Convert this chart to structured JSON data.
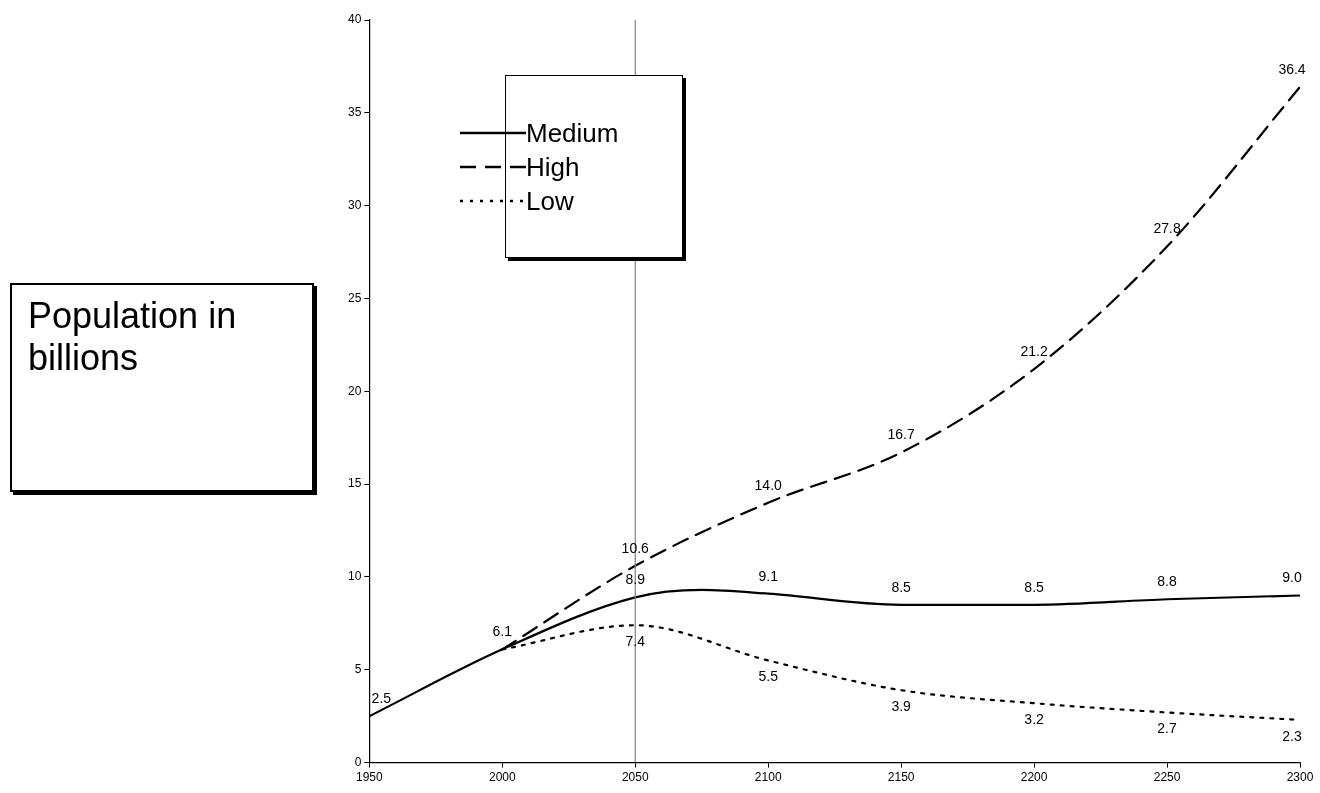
{
  "chart_data": {
    "type": "line",
    "ylabel": "Population in billions",
    "xlim": [
      1950,
      2300
    ],
    "xticks": [
      1950,
      2000,
      2050,
      2100,
      2150,
      2200,
      2250,
      2300
    ],
    "ylim": [
      0,
      40
    ],
    "yticks": [
      0,
      5,
      10,
      15,
      20,
      25,
      30,
      35,
      40
    ],
    "grid": false,
    "legend": "top left",
    "marker": "none",
    "ref_lines": [
      {
        "axis": "x",
        "value": 2050,
        "color": "#808080"
      }
    ],
    "series": [
      {
        "name": "Medium",
        "color": "#000000",
        "line_style": "solid",
        "x": [
          1950,
          2000,
          2050,
          2075,
          2100,
          2150,
          2200,
          2250,
          2300
        ],
        "values": [
          2.5,
          6.1,
          8.9,
          9.3,
          9.1,
          8.5,
          8.5,
          8.8,
          9.0
        ],
        "value_labels": [
          "2.5",
          "6.1",
          "8.9",
          null,
          "9.1",
          "8.5",
          "8.5",
          "8.8",
          "9.0"
        ]
      },
      {
        "name": "High",
        "color": "#000000",
        "line_style": "dashed",
        "x": [
          2000,
          2050,
          2100,
          2150,
          2200,
          2250,
          2300
        ],
        "values": [
          6.1,
          10.6,
          14.0,
          16.7,
          21.2,
          27.8,
          36.4
        ],
        "value_labels": [
          null,
          "10.6",
          "14.0",
          "16.7",
          "21.2",
          "27.8",
          "36.4"
        ]
      },
      {
        "name": "Low",
        "color": "#000000",
        "line_style": "dotted",
        "x": [
          2000,
          2050,
          2100,
          2150,
          2200,
          2250,
          2300
        ],
        "values": [
          6.1,
          7.4,
          5.5,
          3.9,
          3.2,
          2.7,
          2.3
        ],
        "value_labels": [
          null,
          "7.4",
          "5.5",
          "3.9",
          "3.2",
          "2.7",
          "2.3"
        ]
      }
    ]
  }
}
